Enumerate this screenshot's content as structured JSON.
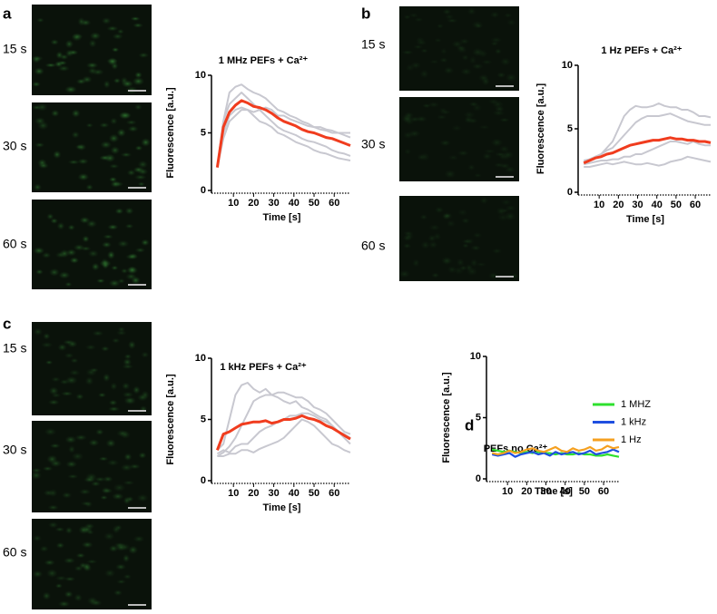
{
  "panels": [
    {
      "label": "a",
      "image_labels": [
        "15 s",
        "30 s",
        "60 s"
      ]
    },
    {
      "label": "b",
      "image_labels": [
        "15 s",
        "30 s",
        "60 s"
      ]
    },
    {
      "label": "c",
      "image_labels": [
        "15 s",
        "30 s",
        "60 s"
      ]
    },
    {
      "label": "d"
    }
  ],
  "chart_data": [
    {
      "type": "line",
      "title": "1 MHz PEFs + Ca²⁺",
      "xlabel": "Time [s]",
      "ylabel": "Fluorescence [a.u.]",
      "x": [
        2,
        5,
        8,
        11,
        14,
        17,
        20,
        23,
        26,
        29,
        32,
        35,
        38,
        41,
        44,
        47,
        50,
        53,
        56,
        59,
        62,
        65,
        68
      ],
      "xlim": [
        0,
        68
      ],
      "ylim": [
        0,
        10
      ],
      "xticks": [
        10,
        20,
        30,
        40,
        50,
        60
      ],
      "yticks": [
        0,
        5,
        10
      ],
      "series": [
        {
          "color": "#c8c8d0",
          "values": [
            2,
            6,
            8.5,
            9,
            9.2,
            8.8,
            8.5,
            8.3,
            8,
            7.5,
            7,
            6.8,
            6.5,
            6.3,
            6,
            5.8,
            5.5,
            5.3,
            5.2,
            5,
            5,
            4.8,
            4.6
          ]
        },
        {
          "color": "#c8c8d0",
          "values": [
            2,
            4.5,
            6,
            6.5,
            7,
            7,
            6.5,
            6,
            5.8,
            5.5,
            5,
            4.8,
            4.5,
            4.2,
            4,
            3.8,
            3.5,
            3.3,
            3.2,
            3,
            2.8,
            2.7,
            2.6
          ]
        },
        {
          "color": "#c8c8d0",
          "values": [
            2,
            6,
            7.5,
            8,
            8.5,
            8,
            7.5,
            7,
            6.5,
            6,
            5.5,
            5.2,
            5,
            4.8,
            4.5,
            4.3,
            4.2,
            4,
            3.8,
            3.5,
            3.3,
            3.2,
            3
          ]
        },
        {
          "color": "#c8c8d0",
          "values": [
            2,
            5,
            6.5,
            7,
            7.2,
            7,
            6.8,
            7,
            7.2,
            7,
            6.5,
            6.5,
            6.2,
            6,
            5.8,
            5.6,
            5.5,
            5.5,
            5.3,
            5.2,
            5,
            5,
            5
          ]
        },
        {
          "color": "#f03c1e",
          "values": [
            2,
            5.5,
            6.8,
            7.4,
            7.8,
            7.6,
            7.3,
            7.2,
            7,
            6.7,
            6.3,
            6,
            5.8,
            5.6,
            5.3,
            5.1,
            5,
            4.8,
            4.6,
            4.5,
            4.3,
            4.1,
            3.9
          ]
        }
      ]
    },
    {
      "type": "line",
      "title": "1 Hz PEFs + Ca²⁺",
      "xlabel": "Time [s]",
      "ylabel": "Fluorescence [a.u.]",
      "x": [
        2,
        5,
        8,
        11,
        14,
        17,
        20,
        23,
        26,
        29,
        32,
        35,
        38,
        41,
        44,
        47,
        50,
        53,
        56,
        59,
        62,
        65,
        68
      ],
      "xlim": [
        0,
        68
      ],
      "ylim": [
        0,
        10
      ],
      "xticks": [
        10,
        20,
        30,
        40,
        50,
        60
      ],
      "yticks": [
        0,
        5,
        10
      ],
      "series": [
        {
          "color": "#c8c8d0",
          "values": [
            2.5,
            2.6,
            2.8,
            3,
            3.5,
            4,
            5,
            6,
            6.5,
            6.8,
            6.7,
            6.7,
            6.8,
            7,
            6.8,
            6.7,
            6.7,
            6.5,
            6.5,
            6.3,
            6,
            6,
            5.9
          ]
        },
        {
          "color": "#c8c8d0",
          "values": [
            2.4,
            2.5,
            2.8,
            3,
            3.3,
            3.5,
            4,
            4.5,
            5,
            5.5,
            5.8,
            6,
            6,
            6,
            6.1,
            6.2,
            6,
            5.8,
            5.6,
            5.5,
            5.4,
            5.3,
            5.3
          ]
        },
        {
          "color": "#c8c8d0",
          "values": [
            2.2,
            2.3,
            2.4,
            2.5,
            2.5,
            2.6,
            2.6,
            2.8,
            2.8,
            3,
            3,
            3.2,
            3.4,
            3.6,
            3.8,
            4,
            4,
            3.9,
            3.8,
            4,
            3.8,
            3.7,
            3.7
          ]
        },
        {
          "color": "#c8c8d0",
          "values": [
            2,
            2,
            2.1,
            2.2,
            2.3,
            2.2,
            2.3,
            2.4,
            2.3,
            2.2,
            2.2,
            2.3,
            2.2,
            2.1,
            2.2,
            2.4,
            2.5,
            2.6,
            2.8,
            2.7,
            2.6,
            2.5,
            2.4
          ]
        },
        {
          "color": "#f03c1e",
          "values": [
            2.3,
            2.5,
            2.7,
            2.8,
            3,
            3.1,
            3.3,
            3.5,
            3.7,
            3.8,
            3.9,
            4,
            4.1,
            4.1,
            4.2,
            4.3,
            4.2,
            4.2,
            4.1,
            4.1,
            4,
            4,
            3.9
          ]
        }
      ]
    },
    {
      "type": "line",
      "title": "1 kHz PEFs + Ca²⁺",
      "xlabel": "Time [s]",
      "ylabel": "Fluorescence [a.u.]",
      "x": [
        2,
        5,
        8,
        11,
        14,
        17,
        20,
        23,
        26,
        29,
        32,
        35,
        38,
        41,
        44,
        47,
        50,
        53,
        56,
        59,
        62,
        65,
        68
      ],
      "xlim": [
        0,
        68
      ],
      "ylim": [
        0,
        10
      ],
      "xticks": [
        10,
        20,
        30,
        40,
        50,
        60
      ],
      "yticks": [
        0,
        5,
        10
      ],
      "series": [
        {
          "color": "#c8c8d0",
          "values": [
            2.5,
            3,
            5,
            7,
            7.8,
            8,
            7.5,
            7.2,
            7.5,
            7,
            6.8,
            6.5,
            6.3,
            6.5,
            6,
            5.8,
            5.5,
            5.2,
            5,
            4.5,
            4,
            3.8,
            3.5
          ]
        },
        {
          "color": "#c8c8d0",
          "values": [
            2,
            2.3,
            2.8,
            3.5,
            4.5,
            5.5,
            6.5,
            6.8,
            7,
            7,
            7.2,
            7.2,
            7,
            6.8,
            6.8,
            6.5,
            6,
            5.8,
            5.5,
            5,
            4.5,
            4,
            3.8
          ]
        },
        {
          "color": "#c8c8d0",
          "values": [
            2.2,
            2.5,
            2.3,
            2.8,
            3,
            3,
            3.5,
            4,
            4.3,
            4.5,
            4.8,
            5,
            5.3,
            5.3,
            5.5,
            5.5,
            5.3,
            5,
            4.8,
            4.5,
            4,
            3.5,
            3
          ]
        },
        {
          "color": "#c8c8d0",
          "values": [
            2,
            2,
            2.2,
            2.2,
            2.5,
            2.5,
            2.3,
            2.6,
            2.8,
            3,
            3.2,
            3.5,
            4,
            4.5,
            5,
            4.8,
            4.5,
            4,
            3.5,
            3,
            2.8,
            2.5,
            2.3
          ]
        },
        {
          "color": "#f03c1e",
          "values": [
            2.5,
            3.8,
            4,
            4.3,
            4.6,
            4.7,
            4.8,
            4.8,
            4.9,
            4.7,
            4.8,
            5,
            5,
            5.1,
            5.3,
            5.1,
            5,
            4.8,
            4.5,
            4.3,
            4,
            3.7,
            3.4
          ]
        }
      ]
    },
    {
      "type": "line",
      "title": "PEFs no Ca²⁺",
      "xlabel": "Time [s]",
      "ylabel": "Fluorescence [a.u.]",
      "x": [
        2,
        5,
        8,
        11,
        14,
        17,
        20,
        23,
        26,
        29,
        32,
        35,
        38,
        41,
        44,
        47,
        50,
        53,
        56,
        59,
        62,
        65,
        68
      ],
      "xlim": [
        0,
        68
      ],
      "ylim": [
        0,
        10
      ],
      "xticks": [
        10,
        20,
        30,
        40,
        50,
        60
      ],
      "yticks": [
        0,
        5,
        10
      ],
      "legend": "right",
      "series": [
        {
          "name": "1 MHZ",
          "color": "#2ee02e",
          "values": [
            2.4,
            2.3,
            2.2,
            2.3,
            2.2,
            2.1,
            2.2,
            2.1,
            2.2,
            2.1,
            2.1,
            2,
            2.1,
            2,
            2,
            2.1,
            2,
            2,
            1.9,
            1.9,
            2,
            1.9,
            1.8
          ]
        },
        {
          "name": "1 kHz",
          "color": "#1f4fe0",
          "values": [
            2,
            1.9,
            2,
            2.1,
            1.8,
            2,
            2.1,
            2.2,
            2,
            2.1,
            1.9,
            2.2,
            2,
            2.1,
            2.2,
            2,
            2.1,
            2.3,
            2,
            2.1,
            2.2,
            2.4,
            2.2
          ]
        },
        {
          "name": "1 Hz",
          "color": "#f5a020",
          "values": [
            2.1,
            2,
            2.1,
            2.3,
            2.1,
            2.2,
            2.4,
            2.5,
            2.3,
            2.2,
            2.4,
            2.6,
            2.3,
            2.2,
            2.5,
            2.3,
            2.4,
            2.6,
            2.3,
            2.4,
            2.7,
            2.5,
            2.6
          ]
        }
      ]
    }
  ]
}
